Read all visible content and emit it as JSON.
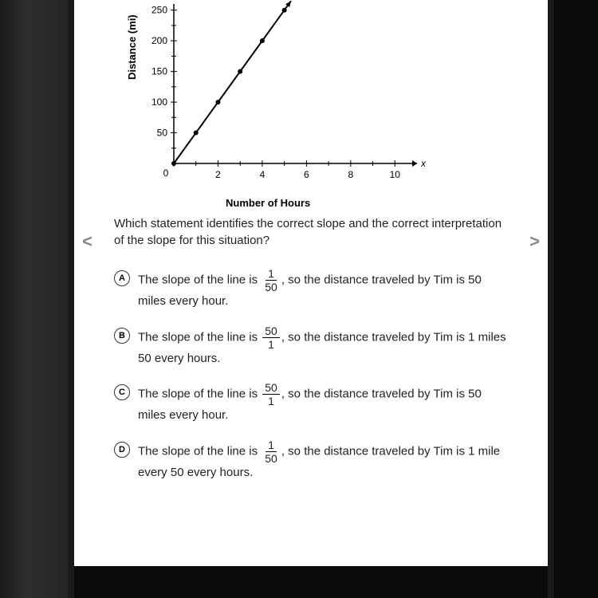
{
  "chart": {
    "type": "line",
    "ylabel": "Distance (mi)",
    "xlabel": "Number of Hours",
    "x_axis_var": "x",
    "yticks": [
      0,
      50,
      100,
      150,
      200,
      250
    ],
    "xticks": [
      0,
      2,
      4,
      6,
      8,
      10
    ],
    "ylim": [
      0,
      260
    ],
    "xlim": [
      0,
      11
    ],
    "points": [
      {
        "x": 0,
        "y": 0
      },
      {
        "x": 1,
        "y": 50
      },
      {
        "x": 2,
        "y": 100
      },
      {
        "x": 3,
        "y": 150
      },
      {
        "x": 4,
        "y": 200
      },
      {
        "x": 5,
        "y": 250
      }
    ],
    "line_color": "#000000",
    "point_color": "#000000",
    "axis_color": "#000000",
    "background_color": "#ffffff",
    "label_fontsize": 13,
    "tick_fontsize": 12,
    "line_width": 2,
    "point_radius": 3
  },
  "nav": {
    "left": "<",
    "right": ">"
  },
  "question": "Which statement identifies the correct slope and the correct interpretation of the slope for this situation?",
  "options": [
    {
      "letter": "A",
      "pre": "The slope of the line is ",
      "num": "1",
      "den": "50",
      "post": ", so the distance traveled by Tim is 50 miles every hour."
    },
    {
      "letter": "B",
      "pre": "The slope of the line is ",
      "num": "50",
      "den": "1",
      "post": ", so the distance traveled by Tim is 1 miles 50 every hours."
    },
    {
      "letter": "C",
      "pre": "The slope of the line is ",
      "num": "50",
      "den": "1",
      "post": ", so the distance traveled by Tim is 50 miles every hour."
    },
    {
      "letter": "D",
      "pre": "The slope of the line is ",
      "num": "1",
      "den": "50",
      "post": ", so the distance traveled by Tim is 1 mile every 50 every hours."
    }
  ]
}
